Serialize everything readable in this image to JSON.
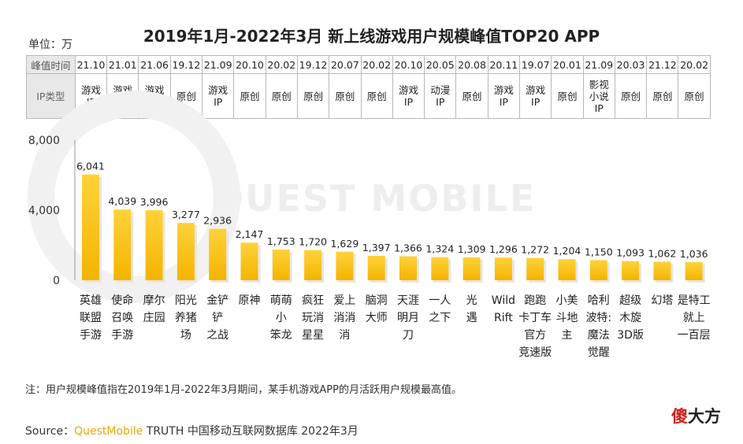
{
  "title": "2019年1月-2022年3月 新上线游戏用户规模峰值TOP20 APP",
  "unit_label": "单位：万",
  "table": {
    "row_headers": [
      "峰值时间",
      "IP类型"
    ],
    "peak_time": [
      "21.10",
      "21.01",
      "21.06",
      "19.12",
      "21.09",
      "20.10",
      "20.02",
      "19.12",
      "20.07",
      "20.02",
      "20.10",
      "20.05",
      "20.08",
      "20.11",
      "19.07",
      "20.01",
      "21.09",
      "20.03",
      "21.12",
      "20.02"
    ],
    "ip_type": [
      "游戏IP",
      "游戏IP",
      "游戏IP",
      "原创",
      "游戏IP",
      "原创",
      "原创",
      "原创",
      "原创",
      "原创",
      "游戏IP",
      "动漫IP",
      "原创",
      "游戏IP",
      "游戏IP",
      "原创",
      "影视小说IP",
      "原创",
      "原创",
      "原创"
    ]
  },
  "chart_data": {
    "type": "bar",
    "categories": [
      "英雄联盟手游",
      "使命召唤手游",
      "摩尔庄园",
      "阳光养猪场",
      "金铲铲之战",
      "原神",
      "萌萌小笨龙",
      "疯狂玩消星星",
      "爱上消消消",
      "脑洞大师",
      "天涯明月刀",
      "一人之下",
      "光遇",
      "Wild Rift",
      "跑跑卡丁车官方竞速版",
      "小美斗地主",
      "哈利波特：魔法觉醒",
      "超级木旋3D版",
      "幻塔",
      "是特工就上一百层"
    ],
    "category_lines": [
      [
        "英雄",
        "联盟",
        "手游"
      ],
      [
        "使命",
        "召唤",
        "手游"
      ],
      [
        "摩尔",
        "庄园"
      ],
      [
        "阳光",
        "养猪",
        "场"
      ],
      [
        "金铲",
        "铲",
        "之战"
      ],
      [
        "原神"
      ],
      [
        "萌萌",
        "小",
        "笨龙"
      ],
      [
        "疯狂",
        "玩消",
        "星星"
      ],
      [
        "爱上",
        "消消",
        "消"
      ],
      [
        "脑洞",
        "大师"
      ],
      [
        "天涯",
        "明月",
        "刀"
      ],
      [
        "一人",
        "之下"
      ],
      [
        "光",
        "遇"
      ],
      [
        "Wild",
        "Rift"
      ],
      [
        "跑跑",
        "卡丁车",
        "官方",
        "竞速版"
      ],
      [
        "小美",
        "斗地",
        "主"
      ],
      [
        "哈利",
        "波特:",
        "魔法",
        "觉醒"
      ],
      [
        "超级",
        "木旋",
        "3D版"
      ],
      [
        "幻塔"
      ],
      [
        "是特工",
        "就上",
        "一百层"
      ]
    ],
    "values": [
      6041,
      4039,
      3996,
      3277,
      2936,
      2147,
      1753,
      1720,
      1629,
      1397,
      1366,
      1324,
      1309,
      1296,
      1272,
      1204,
      1150,
      1093,
      1062,
      1036
    ],
    "value_labels": [
      "6,041",
      "4,039",
      "3,996",
      "3,277",
      "2,936",
      "2,147",
      "1,753",
      "1,720",
      "1,629",
      "1,397",
      "1,366",
      "1,324",
      "1,309",
      "1,296",
      "1,272",
      "1,204",
      "1,150",
      "1,093",
      "1,062",
      "1,036"
    ],
    "ylim": [
      0,
      8000
    ],
    "yticks": [
      0,
      4000,
      8000
    ],
    "ytick_labels": [
      "0",
      "4,000",
      "8,000"
    ],
    "bar_color_top": "#ffd23a",
    "bar_color_bottom": "#f4b400",
    "grid": false
  },
  "note": "注：用户规模峰值指在2019年1月-2022年3月期间，某手机游戏APP的月活跃用户规模最高值。",
  "source": {
    "prefix": "Source：",
    "brand": "QuestMobile",
    "rest": " TRUTH 中国移动互联网数据库 2022年3月"
  },
  "watermark": "QUEST MOBILE",
  "badge": {
    "red": "傻",
    "dark": "大方"
  }
}
